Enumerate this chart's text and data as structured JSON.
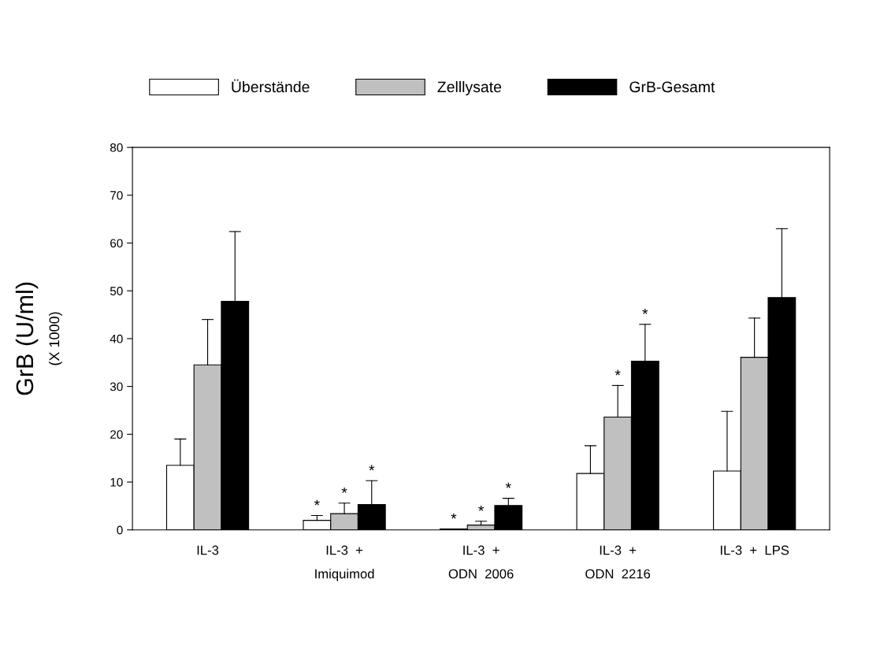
{
  "chart_data": {
    "type": "bar",
    "ylabel": "GrB (U/ml)\n(X 1000)",
    "categories": [
      "IL-3",
      "IL-3  +\nImiquimod",
      "IL-3  +\nODN  2006",
      "IL-3  +\nODN  2216",
      "IL-3  +  LPS"
    ],
    "series": [
      {
        "name": "Überstände",
        "color": "#ffffff",
        "values": [
          13.5,
          2.0,
          0.2,
          11.8,
          12.3
        ],
        "errors": [
          5.5,
          1.0,
          null,
          5.8,
          12.5
        ],
        "value_labels": [
          null,
          "*",
          "*",
          null,
          null
        ]
      },
      {
        "name": "Zelllysate",
        "color": "#c0c0c0",
        "values": [
          34.5,
          3.4,
          1.0,
          23.6,
          36.1
        ],
        "errors": [
          9.5,
          2.2,
          0.8,
          6.6,
          8.2
        ],
        "value_labels": [
          null,
          "*",
          "*",
          "*",
          null
        ]
      },
      {
        "name": "GrB-Gesamt",
        "color": "#000000",
        "values": [
          47.8,
          5.3,
          5.1,
          35.3,
          48.6
        ],
        "errors": [
          14.6,
          5.0,
          1.5,
          7.7,
          14.4
        ],
        "value_labels": [
          null,
          "*",
          "*",
          "*",
          null
        ]
      }
    ],
    "ylim": [
      0,
      80
    ],
    "yticks": [
      0,
      10,
      20,
      30,
      40,
      50,
      60,
      70,
      80
    ],
    "legend": "top",
    "grid": false
  }
}
